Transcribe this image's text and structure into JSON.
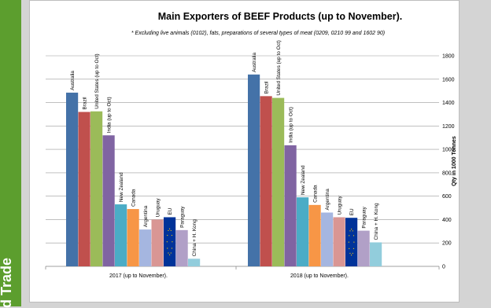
{
  "sidebar": {
    "text": "d Trade"
  },
  "chart_data": {
    "type": "bar",
    "title": "Main Exporters of BEEF Products (up to November).",
    "subtitle": "* Excluding live animals (0102), fats, preparations of several types of meat (0209, 0210 99 and 1602 90)",
    "ylabel": "Qty in 1000 Tonnes",
    "ylim": [
      0,
      1800
    ],
    "yticks": [
      0,
      200,
      400,
      600,
      800,
      1000,
      1200,
      1400,
      1600,
      1800
    ],
    "y_axis_position": "right",
    "groups": [
      "2017 (up to November).",
      "2018 (up to November)."
    ],
    "series": [
      {
        "name": "Australia",
        "color": "#4472a8",
        "values": [
          1485,
          1640
        ]
      },
      {
        "name": "Brazil",
        "color": "#c0504d",
        "values": [
          1320,
          1455
        ]
      },
      {
        "name": "United States (up to Oct)",
        "color": "#9bbb59",
        "values": [
          1325,
          1440
        ]
      },
      {
        "name": "India (up to Oct)",
        "color": "#8064a2",
        "values": [
          1120,
          1035
        ]
      },
      {
        "name": "New Zealand",
        "color": "#4bacc6",
        "values": [
          530,
          590
        ]
      },
      {
        "name": "Canada",
        "color": "#f79646",
        "values": [
          490,
          525
        ]
      },
      {
        "name": "Argentina",
        "color": "#a5b6e0",
        "values": [
          315,
          460
        ]
      },
      {
        "name": "Uruguay",
        "color": "#d99694",
        "values": [
          400,
          420
        ]
      },
      {
        "name": "EU",
        "color": "#003399",
        "values": [
          420,
          415
        ]
      },
      {
        "name": "Paraguay",
        "color": "#b1a0c7",
        "values": [
          310,
          305
        ]
      },
      {
        "name": "China + H. Kong",
        "color": "#92cddc",
        "values": [
          65,
          205
        ]
      }
    ]
  }
}
